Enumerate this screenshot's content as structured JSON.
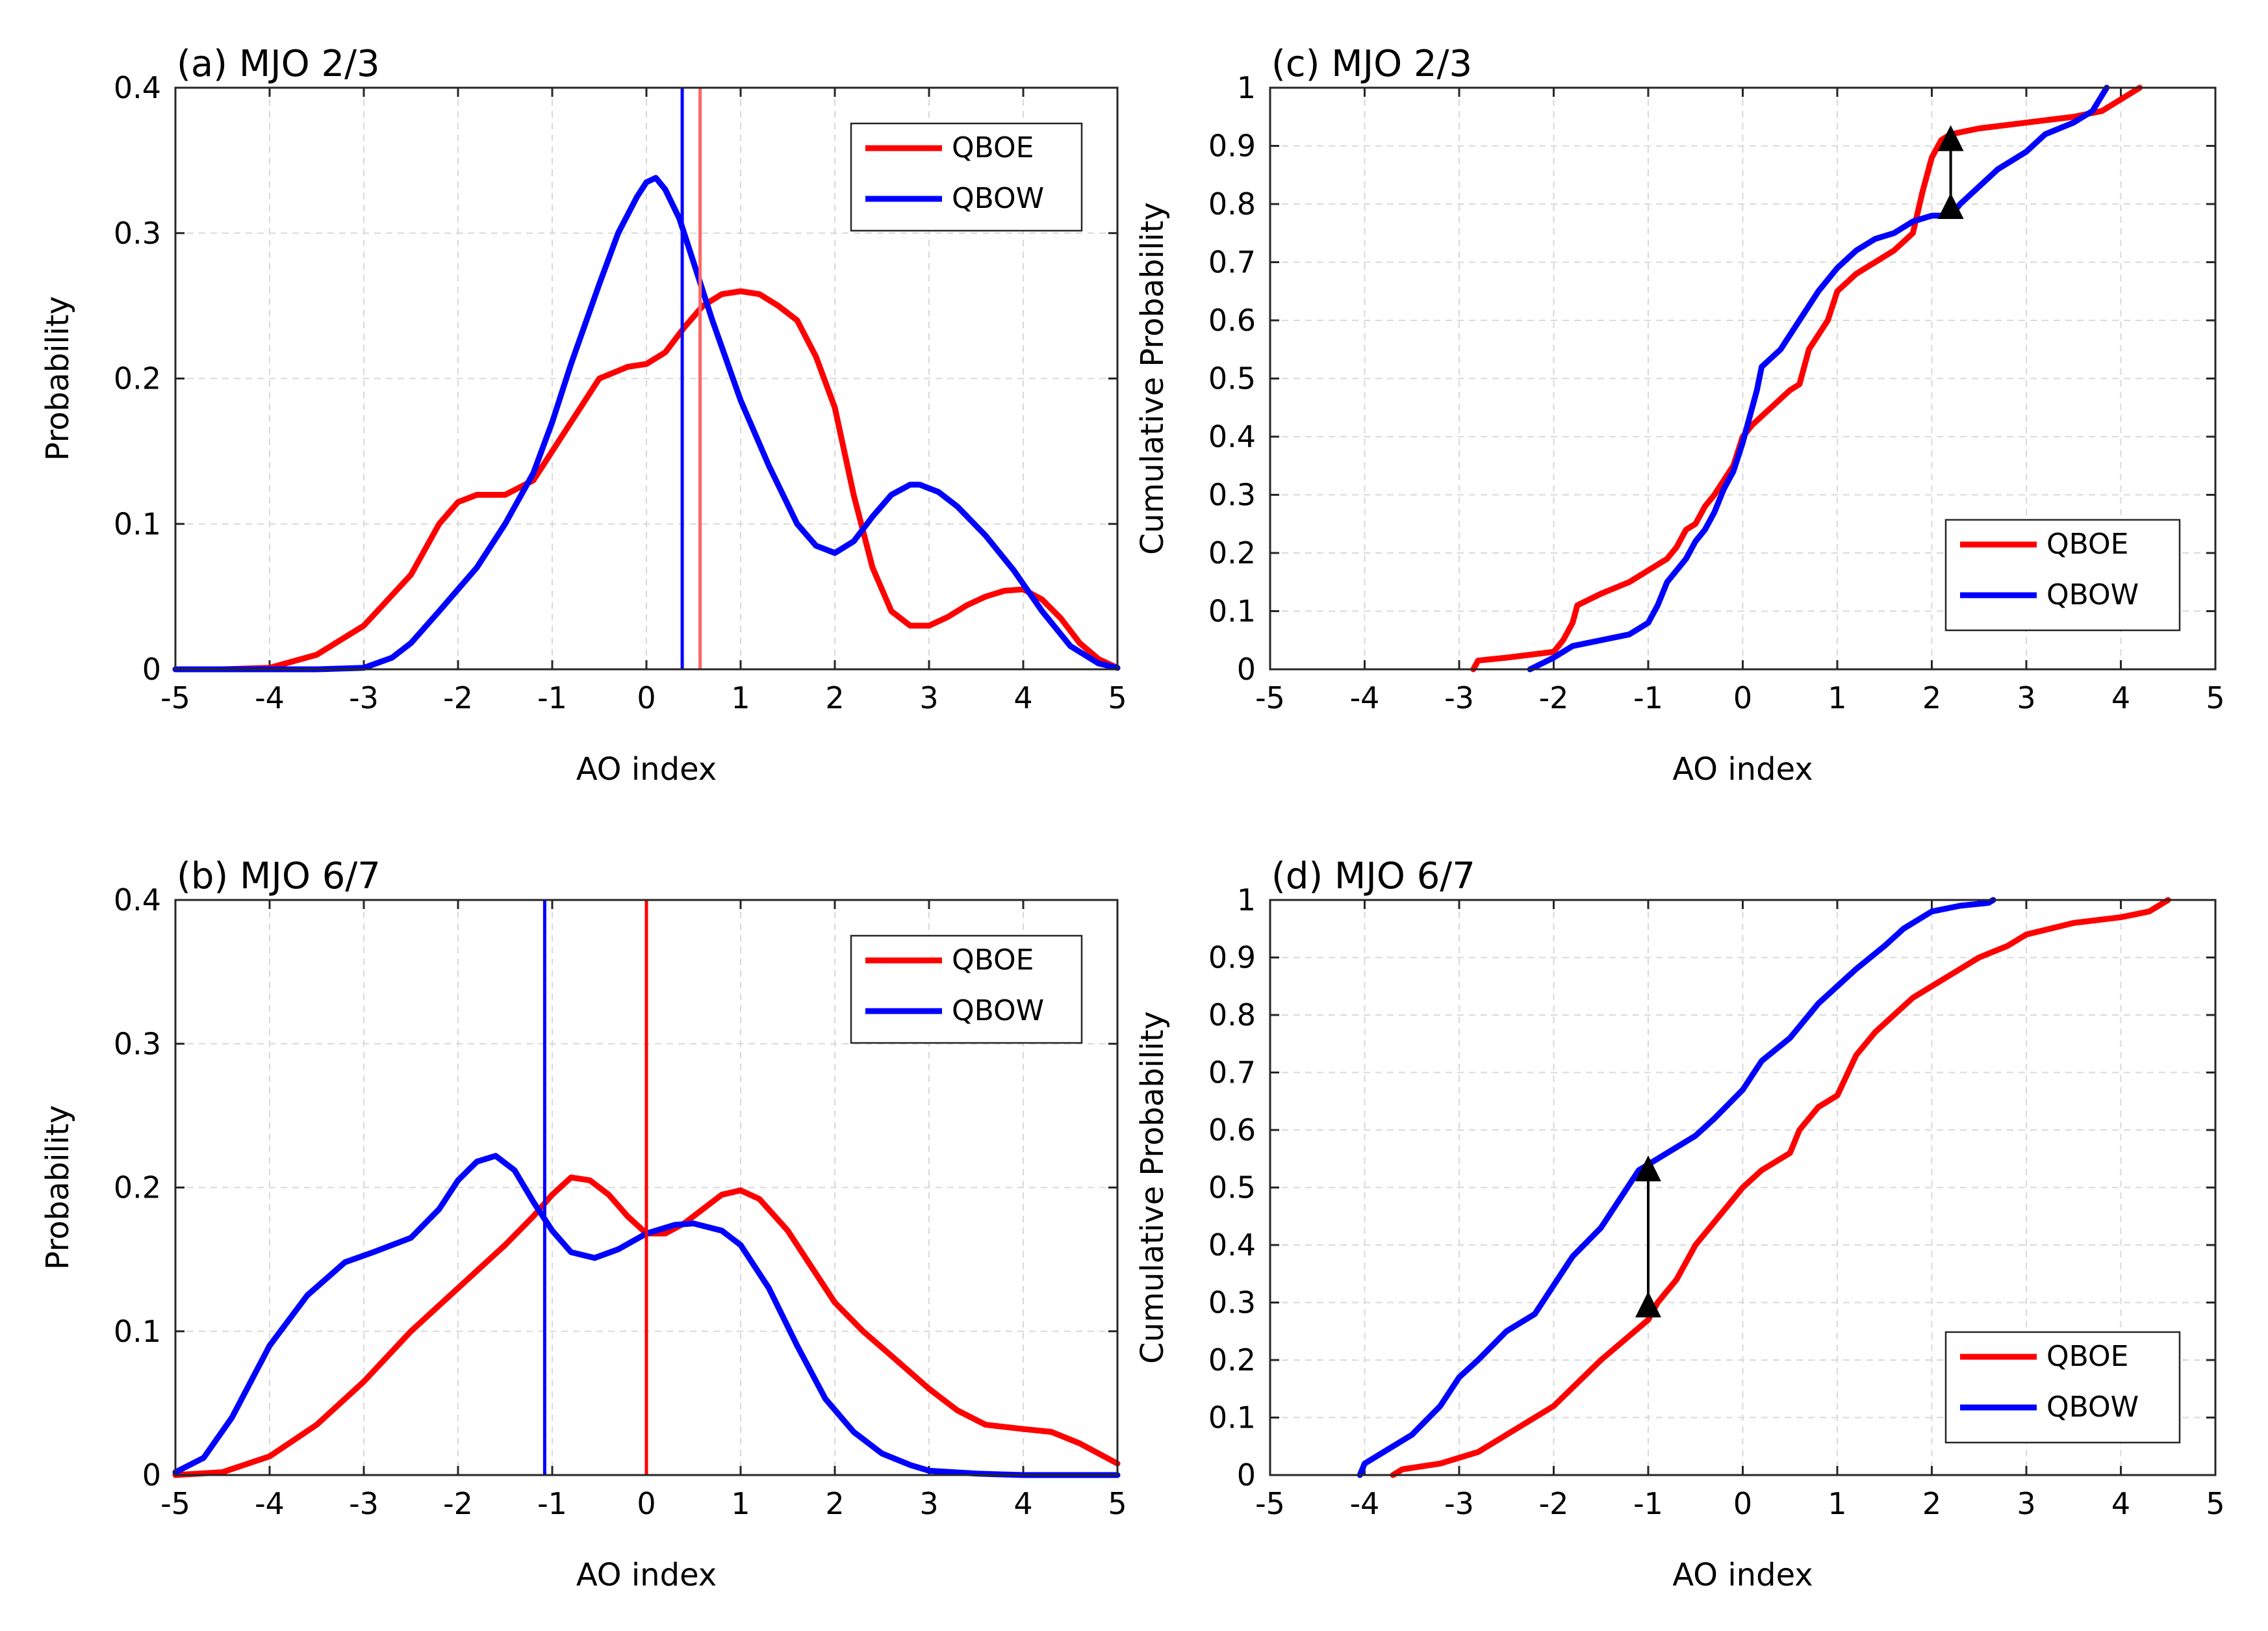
{
  "chart_data": [
    {
      "id": "a",
      "type": "line",
      "title": "(a) MJO 2/3",
      "xlabel": "AO index",
      "ylabel": "Probability",
      "xlim": [
        -5,
        5
      ],
      "ylim": [
        0,
        0.4
      ],
      "xticks": [
        -5,
        -4,
        -3,
        -2,
        -1,
        0,
        1,
        2,
        3,
        4,
        5
      ],
      "yticks": [
        0,
        0.1,
        0.2,
        0.3,
        0.4
      ],
      "ytick_labels": [
        "0",
        "0.1",
        "0.2",
        "0.3",
        "0.4"
      ],
      "grid": true,
      "legend_position": "top-right",
      "series": [
        {
          "name": "QBOE",
          "color": "#ff0000",
          "x": [
            -5,
            -4.5,
            -4,
            -3.5,
            -3,
            -2.5,
            -2.2,
            -2,
            -1.8,
            -1.5,
            -1.2,
            -1,
            -0.7,
            -0.5,
            -0.2,
            0,
            0.2,
            0.4,
            0.6,
            0.8,
            1,
            1.2,
            1.4,
            1.6,
            1.8,
            2,
            2.2,
            2.4,
            2.6,
            2.8,
            3,
            3.2,
            3.4,
            3.6,
            3.8,
            4,
            4.2,
            4.4,
            4.6,
            4.8,
            5
          ],
          "values": [
            0,
            0,
            0.001,
            0.01,
            0.03,
            0.065,
            0.1,
            0.115,
            0.12,
            0.12,
            0.13,
            0.15,
            0.18,
            0.2,
            0.208,
            0.21,
            0.218,
            0.235,
            0.25,
            0.258,
            0.26,
            0.258,
            0.25,
            0.24,
            0.215,
            0.18,
            0.12,
            0.07,
            0.04,
            0.03,
            0.03,
            0.036,
            0.044,
            0.05,
            0.054,
            0.055,
            0.048,
            0.035,
            0.018,
            0.007,
            0.001
          ]
        },
        {
          "name": "QBOW",
          "color": "#0000ff",
          "x": [
            -5,
            -4.5,
            -4,
            -3.5,
            -3,
            -2.7,
            -2.5,
            -2.2,
            -2,
            -1.8,
            -1.5,
            -1.2,
            -1,
            -0.8,
            -0.5,
            -0.3,
            -0.1,
            0,
            0.1,
            0.2,
            0.35,
            0.5,
            0.7,
            1,
            1.3,
            1.6,
            1.8,
            2,
            2.2,
            2.4,
            2.6,
            2.8,
            2.9,
            3.1,
            3.3,
            3.6,
            3.9,
            4.2,
            4.5,
            4.8,
            5
          ],
          "values": [
            0,
            0,
            0,
            0,
            0.001,
            0.008,
            0.018,
            0.04,
            0.055,
            0.07,
            0.1,
            0.135,
            0.17,
            0.21,
            0.265,
            0.3,
            0.325,
            0.335,
            0.338,
            0.33,
            0.31,
            0.28,
            0.24,
            0.185,
            0.14,
            0.1,
            0.085,
            0.08,
            0.088,
            0.105,
            0.12,
            0.127,
            0.127,
            0.122,
            0.112,
            0.092,
            0.068,
            0.04,
            0.016,
            0.004,
            0.001
          ]
        }
      ],
      "vlines": [
        {
          "name": "QBOE-mean",
          "x": 0.57,
          "color": "#ff6666"
        },
        {
          "name": "QBOW-mean",
          "x": 0.38,
          "color": "#0000ff"
        }
      ]
    },
    {
      "id": "b",
      "type": "line",
      "title": "(b) MJO 6/7",
      "xlabel": "AO index",
      "ylabel": "Probability",
      "xlim": [
        -5,
        5
      ],
      "ylim": [
        0,
        0.4
      ],
      "xticks": [
        -5,
        -4,
        -3,
        -2,
        -1,
        0,
        1,
        2,
        3,
        4,
        5
      ],
      "yticks": [
        0,
        0.1,
        0.2,
        0.3,
        0.4
      ],
      "ytick_labels": [
        "0",
        "0.1",
        "0.2",
        "0.3",
        "0.4"
      ],
      "grid": true,
      "legend_position": "top-right",
      "series": [
        {
          "name": "QBOE",
          "color": "#ff0000",
          "x": [
            -5,
            -4.5,
            -4,
            -3.5,
            -3,
            -2.5,
            -2,
            -1.5,
            -1.2,
            -1,
            -0.8,
            -0.6,
            -0.4,
            -0.2,
            0,
            0.2,
            0.4,
            0.6,
            0.8,
            1,
            1.2,
            1.5,
            1.8,
            2,
            2.3,
            2.6,
            3,
            3.3,
            3.6,
            4,
            4.3,
            4.6,
            5
          ],
          "values": [
            0,
            0.002,
            0.013,
            0.035,
            0.065,
            0.1,
            0.13,
            0.16,
            0.18,
            0.195,
            0.207,
            0.205,
            0.195,
            0.18,
            0.168,
            0.168,
            0.175,
            0.185,
            0.195,
            0.198,
            0.192,
            0.17,
            0.14,
            0.12,
            0.1,
            0.083,
            0.06,
            0.045,
            0.035,
            0.032,
            0.03,
            0.022,
            0.008
          ]
        },
        {
          "name": "QBOW",
          "color": "#0000ff",
          "x": [
            -5,
            -4.7,
            -4.4,
            -4,
            -3.6,
            -3.2,
            -2.9,
            -2.5,
            -2.2,
            -2,
            -1.8,
            -1.6,
            -1.4,
            -1.2,
            -1,
            -0.8,
            -0.55,
            -0.3,
            0,
            0.3,
            0.5,
            0.8,
            1,
            1.3,
            1.6,
            1.9,
            2.2,
            2.5,
            2.8,
            3,
            3.5,
            4,
            4.5,
            5
          ],
          "values": [
            0.002,
            0.012,
            0.04,
            0.09,
            0.125,
            0.148,
            0.155,
            0.165,
            0.185,
            0.205,
            0.218,
            0.222,
            0.212,
            0.19,
            0.17,
            0.155,
            0.151,
            0.157,
            0.168,
            0.174,
            0.175,
            0.17,
            0.16,
            0.13,
            0.09,
            0.053,
            0.03,
            0.015,
            0.007,
            0.003,
            0.001,
            0,
            0,
            0
          ]
        }
      ],
      "vlines": [
        {
          "name": "QBOE-mean",
          "x": 0.0,
          "color": "#ff0000"
        },
        {
          "name": "QBOW-mean",
          "x": -1.08,
          "color": "#0000ff"
        }
      ]
    },
    {
      "id": "c",
      "type": "line",
      "title": "(c) MJO 2/3",
      "xlabel": "AO index",
      "ylabel": "Cumulative Probability",
      "xlim": [
        -5,
        5
      ],
      "ylim": [
        0,
        1
      ],
      "xticks": [
        -5,
        -4,
        -3,
        -2,
        -1,
        0,
        1,
        2,
        3,
        4,
        5
      ],
      "yticks": [
        0,
        0.1,
        0.2,
        0.3,
        0.4,
        0.5,
        0.6,
        0.7,
        0.8,
        0.9,
        1
      ],
      "ytick_labels": [
        "0",
        "0.1",
        "0.2",
        "0.3",
        "0.4",
        "0.5",
        "0.6",
        "0.7",
        "0.8",
        "0.9",
        "1"
      ],
      "grid": true,
      "legend_position": "bottom-right",
      "series": [
        {
          "name": "QBOE",
          "color": "#ff0000",
          "x": [
            -2.85,
            -2.8,
            -2.5,
            -2.0,
            -1.9,
            -1.8,
            -1.75,
            -1.5,
            -1.2,
            -1.0,
            -0.8,
            -0.7,
            -0.6,
            -0.5,
            -0.4,
            -0.3,
            -0.1,
            0,
            0.1,
            0.3,
            0.5,
            0.6,
            0.65,
            0.7,
            0.9,
            1.0,
            1.2,
            1.4,
            1.6,
            1.8,
            1.9,
            2.0,
            2.1,
            2.2,
            2.5,
            3.0,
            3.5,
            3.8,
            4.0,
            4.2
          ],
          "values": [
            0,
            0.015,
            0.02,
            0.03,
            0.05,
            0.08,
            0.11,
            0.13,
            0.15,
            0.17,
            0.19,
            0.21,
            0.24,
            0.25,
            0.28,
            0.3,
            0.35,
            0.4,
            0.42,
            0.45,
            0.48,
            0.49,
            0.52,
            0.55,
            0.6,
            0.65,
            0.68,
            0.7,
            0.72,
            0.75,
            0.82,
            0.88,
            0.91,
            0.92,
            0.93,
            0.94,
            0.95,
            0.96,
            0.98,
            1.0
          ]
        },
        {
          "name": "QBOW",
          "color": "#0000ff",
          "x": [
            -2.25,
            -2.0,
            -1.8,
            -1.5,
            -1.2,
            -1.0,
            -0.9,
            -0.8,
            -0.6,
            -0.5,
            -0.4,
            -0.3,
            -0.2,
            -0.1,
            0,
            0.1,
            0.15,
            0.2,
            0.4,
            0.6,
            0.8,
            1.0,
            1.2,
            1.4,
            1.6,
            1.8,
            2.0,
            2.2,
            2.3,
            2.5,
            2.7,
            3.0,
            3.2,
            3.5,
            3.7,
            3.85
          ],
          "values": [
            0,
            0.02,
            0.04,
            0.05,
            0.06,
            0.08,
            0.11,
            0.15,
            0.19,
            0.22,
            0.24,
            0.27,
            0.31,
            0.34,
            0.39,
            0.45,
            0.48,
            0.52,
            0.55,
            0.6,
            0.65,
            0.69,
            0.72,
            0.74,
            0.75,
            0.77,
            0.78,
            0.78,
            0.8,
            0.83,
            0.86,
            0.89,
            0.92,
            0.94,
            0.96,
            1.0
          ]
        }
      ],
      "annotations": [
        {
          "type": "double-arrow",
          "x": 2.2,
          "y1": 0.79,
          "y2": 0.92,
          "color": "#000000"
        }
      ]
    },
    {
      "id": "d",
      "type": "line",
      "title": "(d) MJO 6/7",
      "xlabel": "AO index",
      "ylabel": "Cumulative Probability",
      "xlim": [
        -5,
        5
      ],
      "ylim": [
        0,
        1
      ],
      "xticks": [
        -5,
        -4,
        -3,
        -2,
        -1,
        0,
        1,
        2,
        3,
        4,
        5
      ],
      "yticks": [
        0,
        0.1,
        0.2,
        0.3,
        0.4,
        0.5,
        0.6,
        0.7,
        0.8,
        0.9,
        1
      ],
      "ytick_labels": [
        "0",
        "0.1",
        "0.2",
        "0.3",
        "0.4",
        "0.5",
        "0.6",
        "0.7",
        "0.8",
        "0.9",
        "1"
      ],
      "grid": true,
      "legend_position": "bottom-right",
      "series": [
        {
          "name": "QBOE",
          "color": "#ff0000",
          "x": [
            -3.7,
            -3.6,
            -3.2,
            -2.8,
            -2.5,
            -2.0,
            -1.5,
            -1.0,
            -0.9,
            -0.7,
            -0.5,
            -0.2,
            0,
            0.2,
            0.5,
            0.6,
            0.8,
            1.0,
            1.2,
            1.4,
            1.6,
            1.8,
            2.0,
            2.2,
            2.5,
            2.8,
            3.0,
            3.5,
            4.0,
            4.3,
            4.5
          ],
          "values": [
            0,
            0.01,
            0.02,
            0.04,
            0.07,
            0.12,
            0.2,
            0.27,
            0.3,
            0.34,
            0.4,
            0.46,
            0.5,
            0.53,
            0.56,
            0.6,
            0.64,
            0.66,
            0.73,
            0.77,
            0.8,
            0.83,
            0.85,
            0.87,
            0.9,
            0.92,
            0.94,
            0.96,
            0.97,
            0.98,
            1.0
          ]
        },
        {
          "name": "QBOW",
          "color": "#0000ff",
          "x": [
            -4.05,
            -4.0,
            -3.8,
            -3.5,
            -3.2,
            -3.0,
            -2.8,
            -2.5,
            -2.2,
            -2.0,
            -1.8,
            -1.5,
            -1.3,
            -1.1,
            -1.0,
            -0.8,
            -0.5,
            -0.3,
            0,
            0.2,
            0.5,
            0.8,
            1.0,
            1.2,
            1.5,
            1.7,
            2.0,
            2.3,
            2.6,
            2.65
          ],
          "values": [
            0,
            0.02,
            0.04,
            0.07,
            0.12,
            0.17,
            0.2,
            0.25,
            0.28,
            0.33,
            0.38,
            0.43,
            0.48,
            0.53,
            0.54,
            0.56,
            0.59,
            0.62,
            0.67,
            0.72,
            0.76,
            0.82,
            0.85,
            0.88,
            0.92,
            0.95,
            0.98,
            0.99,
            0.995,
            1.0
          ]
        }
      ],
      "annotations": [
        {
          "type": "double-arrow",
          "x": -1.0,
          "y1": 0.29,
          "y2": 0.54,
          "color": "#000000"
        }
      ]
    }
  ]
}
